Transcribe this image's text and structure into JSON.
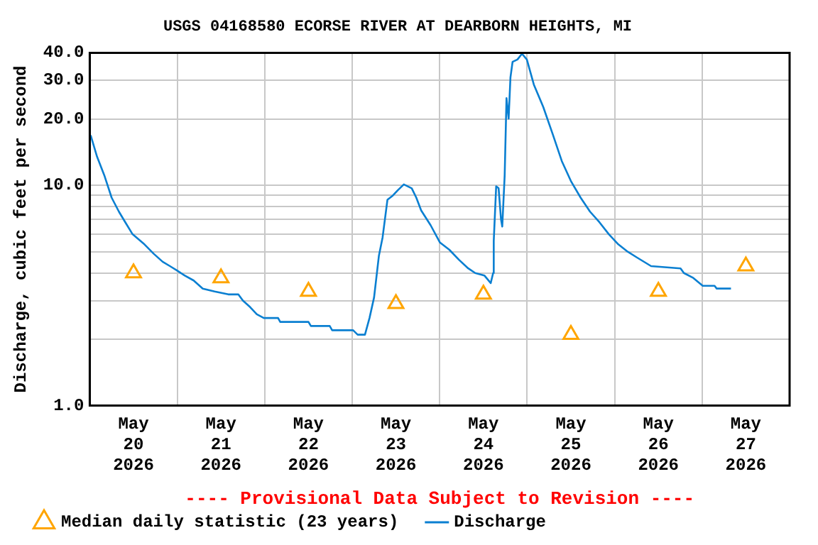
{
  "chart_data": {
    "type": "line",
    "title": "USGS 04168580 ECORSE RIVER AT DEARBORN HEIGHTS, MI",
    "ylabel": "Discharge, cubic feet per second",
    "annotations": [
      "---- Provisional Data Subject to Revision ----"
    ],
    "log": "y",
    "grid": true,
    "legend": "bottom",
    "xlim": [
      "2026-05-20T00:00",
      "2026-05-28T00:00"
    ],
    "xticks": [
      {
        "value": "2026-05-20T12:00",
        "label": "May\n20\n2026"
      },
      {
        "value": "2026-05-21T00:00",
        "label": null
      },
      {
        "value": "2026-05-21T12:00",
        "label": "May\n21\n2026"
      },
      {
        "value": "2026-05-22T00:00",
        "label": null
      },
      {
        "value": "2026-05-22T12:00",
        "label": "May\n22\n2026"
      },
      {
        "value": "2026-05-23T00:00",
        "label": null
      },
      {
        "value": "2026-05-23T12:00",
        "label": "May\n23\n2026"
      },
      {
        "value": "2026-05-24T00:00",
        "label": null
      },
      {
        "value": "2026-05-24T12:00",
        "label": "May\n24\n2026"
      },
      {
        "value": "2026-05-25T00:00",
        "label": null
      },
      {
        "value": "2026-05-25T12:00",
        "label": "May\n25\n2026"
      },
      {
        "value": "2026-05-26T00:00",
        "label": null
      },
      {
        "value": "2026-05-26T12:00",
        "label": "May\n26\n2026"
      },
      {
        "value": "2026-05-27T00:00",
        "label": null
      },
      {
        "value": "2026-05-27T12:00",
        "label": "May\n27\n2026"
      }
    ],
    "ylim": [
      1,
      40
    ],
    "yticks": [
      {
        "value": 1,
        "label": "1.0"
      },
      {
        "value": 2,
        "label": null
      },
      {
        "value": 3,
        "label": null
      },
      {
        "value": 4,
        "label": null
      },
      {
        "value": 5,
        "label": null
      },
      {
        "value": 6,
        "label": null
      },
      {
        "value": 7,
        "label": null
      },
      {
        "value": 8,
        "label": null
      },
      {
        "value": 9,
        "label": null
      },
      {
        "value": 10,
        "label": "10.0"
      },
      {
        "value": 20,
        "label": "20.0"
      },
      {
        "value": 30,
        "label": "30.0"
      },
      {
        "value": 40,
        "label": "40.0"
      }
    ],
    "series": [
      {
        "name": "Median daily statistic (23 years)",
        "type": "scatter",
        "marker": "triangle",
        "color": "#ffa500",
        "x": [
          "2026-05-20T12:00",
          "2026-05-21T12:00",
          "2026-05-22T12:00",
          "2026-05-23T12:00",
          "2026-05-24T12:00",
          "2026-05-25T12:00",
          "2026-05-26T12:00",
          "2026-05-27T12:00"
        ],
        "values": [
          4.0,
          3.8,
          3.3,
          2.9,
          3.2,
          2.1,
          3.3,
          4.3
        ]
      },
      {
        "name": "Discharge",
        "type": "line",
        "marker": "none",
        "color": "#0a7fd1",
        "x": [
          "2026-05-20T00:15",
          "2026-05-20T02:00",
          "2026-05-20T04:00",
          "2026-05-20T06:00",
          "2026-05-20T08:00",
          "2026-05-20T09:45",
          "2026-05-20T11:45",
          "2026-05-20T15:00",
          "2026-05-20T17:30",
          "2026-05-20T20:00",
          "2026-05-20T22:00",
          "2026-05-21T00:00",
          "2026-05-21T02:00",
          "2026-05-21T04:30",
          "2026-05-21T07:00",
          "2026-05-21T10:15",
          "2026-05-21T14:00",
          "2026-05-21T16:45",
          "2026-05-21T18:00",
          "2026-05-21T20:00",
          "2026-05-21T21:50",
          "2026-05-21T23:45",
          "2026-05-22T03:40",
          "2026-05-22T04:15",
          "2026-05-22T12:00",
          "2026-05-22T12:40",
          "2026-05-22T17:50",
          "2026-05-22T18:30",
          "2026-05-23T00:15",
          "2026-05-23T01:30",
          "2026-05-23T03:30",
          "2026-05-23T04:45",
          "2026-05-23T06:00",
          "2026-05-23T07:20",
          "2026-05-23T08:20",
          "2026-05-23T09:40",
          "2026-05-23T11:10",
          "2026-05-23T12:30",
          "2026-05-23T14:10",
          "2026-05-23T16:20",
          "2026-05-23T17:35",
          "2026-05-23T18:55",
          "2026-05-23T21:30",
          "2026-05-24T00:05",
          "2026-05-24T02:40",
          "2026-05-24T05:15",
          "2026-05-24T07:50",
          "2026-05-24T09:45",
          "2026-05-24T12:15",
          "2026-05-24T14:00",
          "2026-05-24T14:40",
          "2026-05-24T14:50",
          "2026-05-24T15:30",
          "2026-05-24T16:10",
          "2026-05-24T16:50",
          "2026-05-24T17:10",
          "2026-05-24T17:50",
          "2026-05-24T18:20",
          "2026-05-24T18:55",
          "2026-05-24T19:25",
          "2026-05-24T20:00",
          "2026-05-24T21:20",
          "2026-05-24T22:35",
          "2026-05-24T23:55",
          "2026-05-25T01:50",
          "2026-05-25T04:25",
          "2026-05-25T07:00",
          "2026-05-25T09:30",
          "2026-05-25T12:05",
          "2026-05-25T14:40",
          "2026-05-25T17:15",
          "2026-05-25T19:50",
          "2026-05-25T22:25",
          "2026-05-26T01:00",
          "2026-05-26T03:35",
          "2026-05-26T06:10",
          "2026-05-26T10:00",
          "2026-05-26T18:05",
          "2026-05-26T19:00",
          "2026-05-26T21:35",
          "2026-05-27T00:10",
          "2026-05-27T03:25",
          "2026-05-27T04:00",
          "2026-05-27T07:55"
        ],
        "values": [
          16.9,
          13.5,
          11.1,
          8.8,
          7.6,
          6.8,
          6.0,
          5.4,
          4.9,
          4.5,
          4.3,
          4.1,
          3.9,
          3.7,
          3.4,
          3.3,
          3.2,
          3.2,
          3.0,
          2.8,
          2.6,
          2.5,
          2.5,
          2.4,
          2.4,
          2.3,
          2.3,
          2.2,
          2.2,
          2.1,
          2.1,
          2.5,
          3.1,
          4.8,
          5.8,
          8.6,
          9.0,
          9.5,
          10.1,
          9.7,
          8.8,
          7.7,
          6.6,
          5.5,
          5.1,
          4.6,
          4.2,
          4.0,
          3.9,
          3.6,
          4.0,
          5.6,
          9.9,
          9.7,
          7.0,
          6.5,
          11.1,
          24.9,
          20.1,
          30.9,
          36.4,
          37.3,
          39.6,
          37.3,
          28.7,
          22.7,
          17.1,
          12.9,
          10.4,
          8.8,
          7.6,
          6.8,
          6.0,
          5.4,
          5.0,
          4.7,
          4.3,
          4.2,
          4.0,
          3.8,
          3.5,
          3.5,
          3.4,
          3.4
        ]
      }
    ]
  }
}
